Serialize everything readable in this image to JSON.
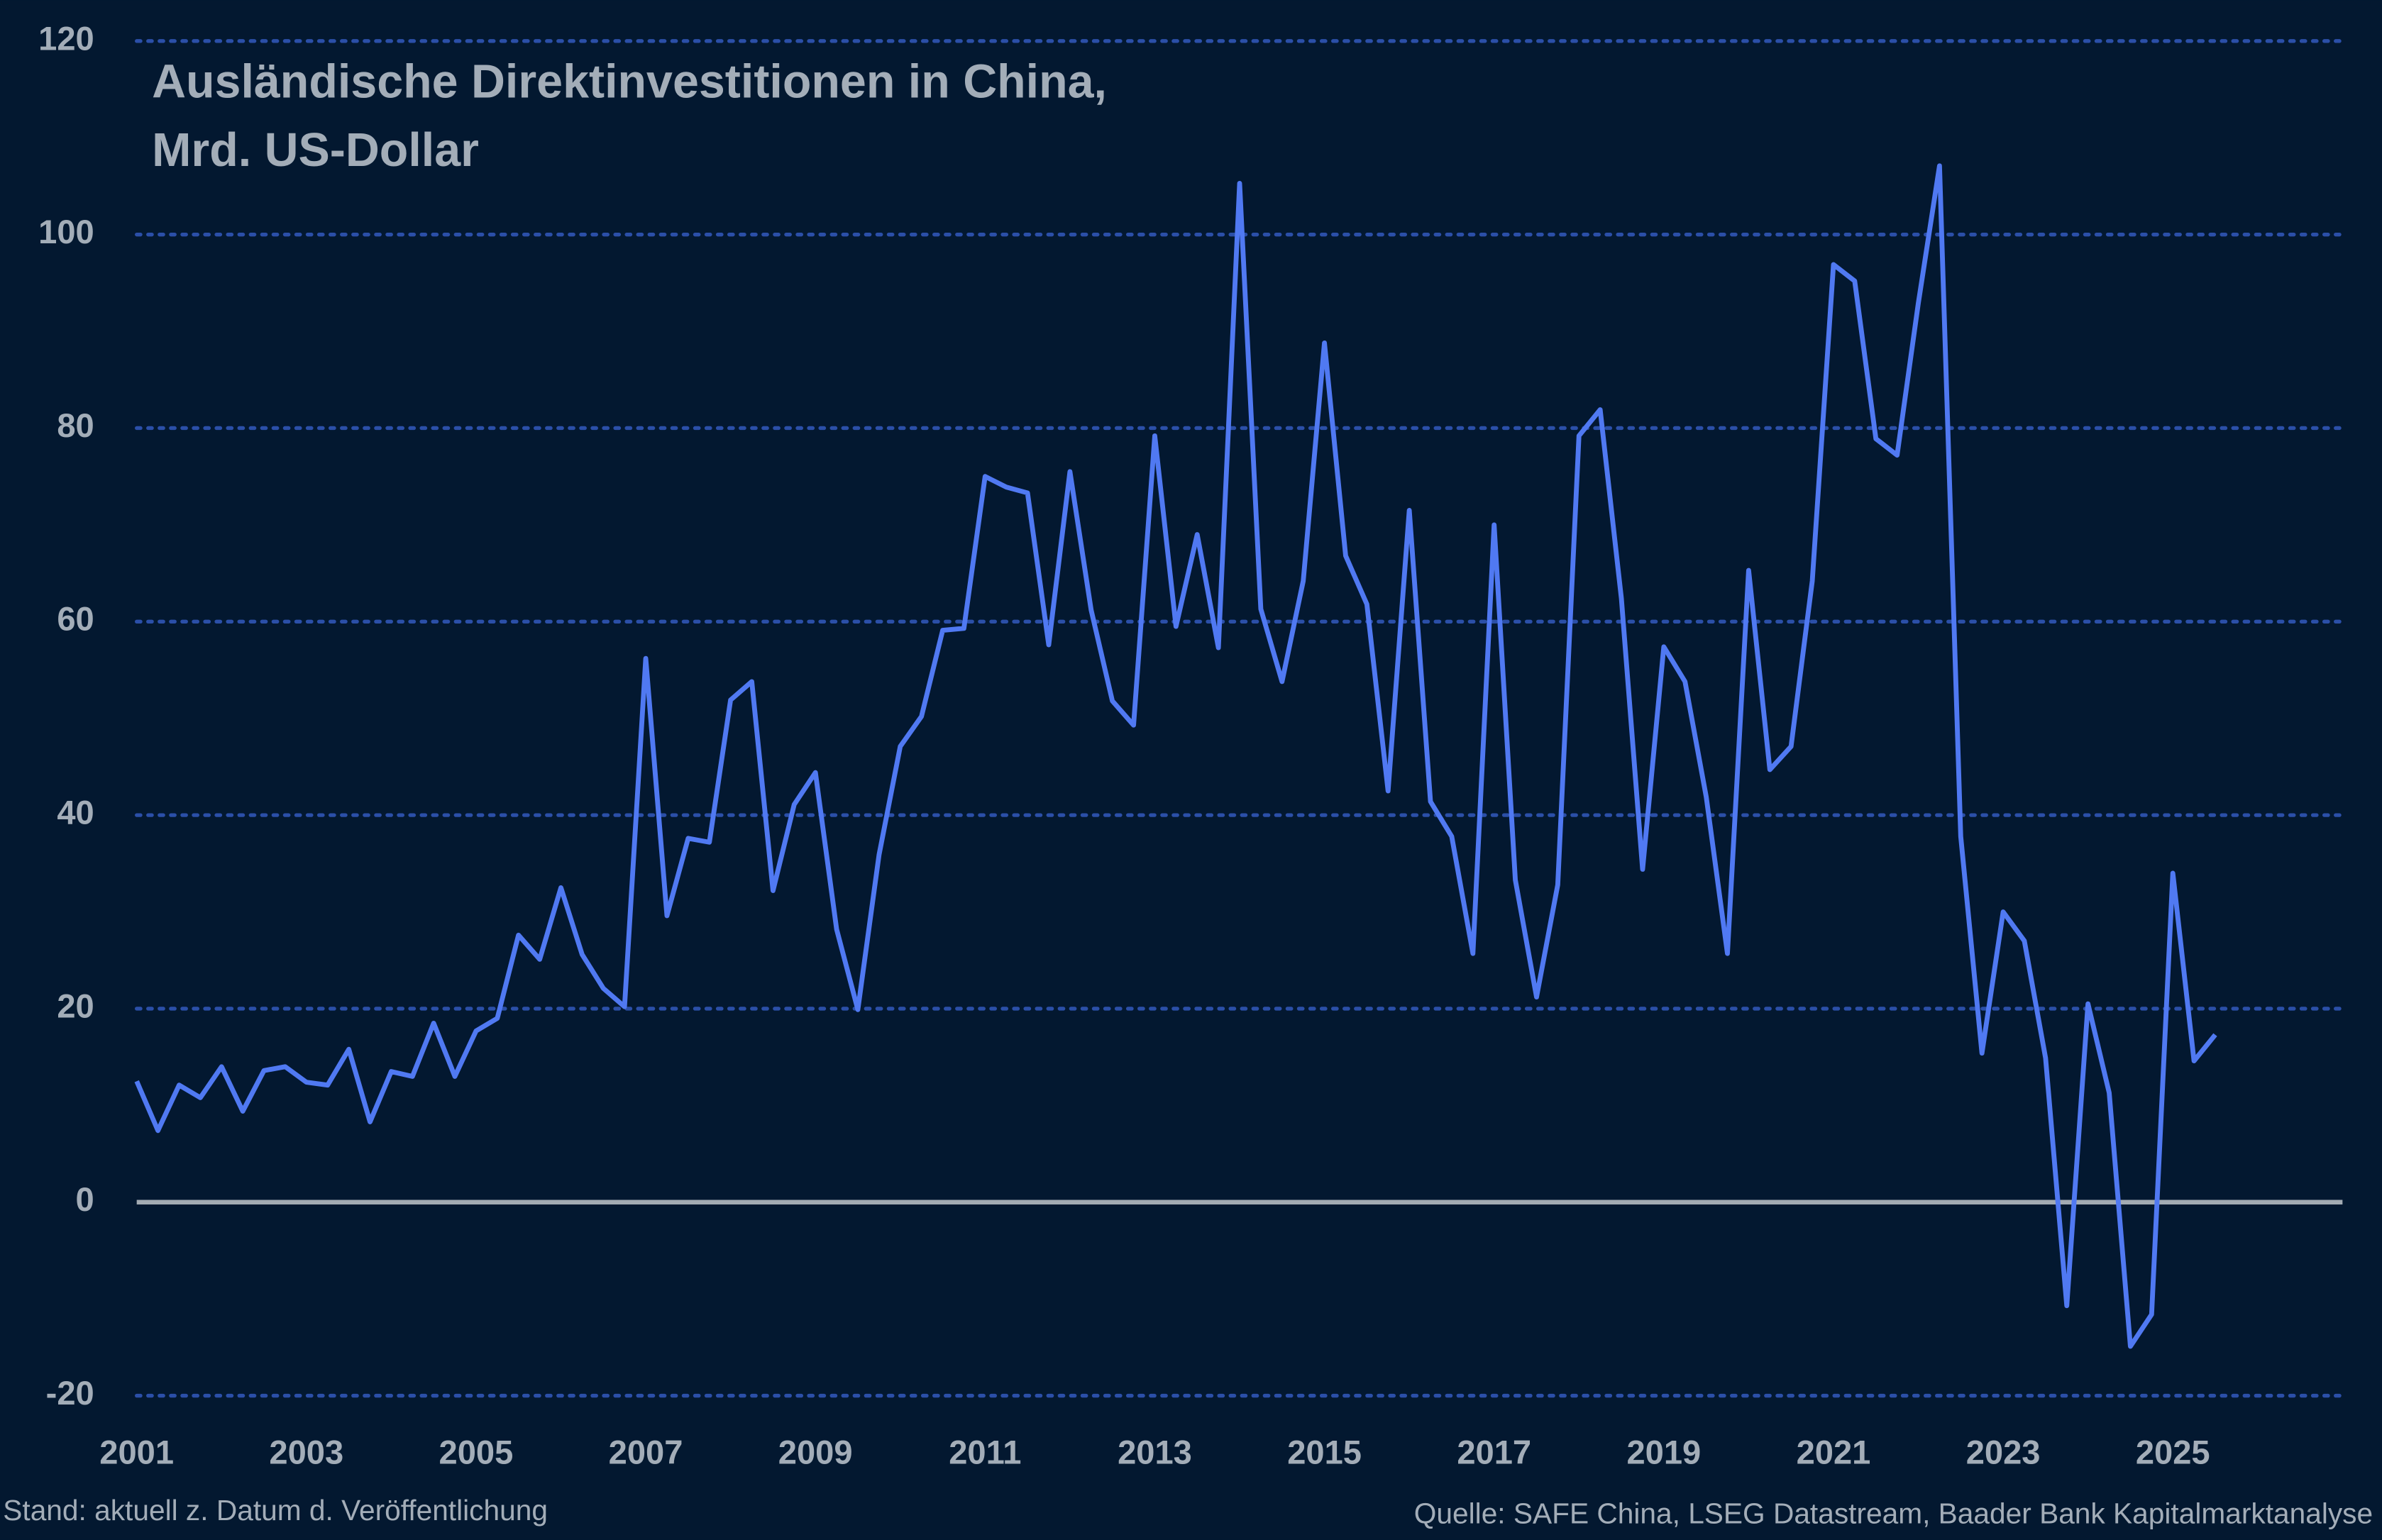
{
  "chart_data": {
    "type": "line",
    "title": [
      "Ausländische Direktinvestitionen in China,",
      "Mrd. US-Dollar"
    ],
    "footnote": "Stand: aktuell z. Datum d. Veröffentlichung",
    "source": "Quelle: SAFE China, LSEG Datastream, Baader Bank Kapitalmarktanalyse",
    "x": [
      2001,
      2001.25,
      2001.5,
      2001.75,
      2002,
      2002.25,
      2002.5,
      2002.75,
      2003,
      2003.25,
      2003.5,
      2003.75,
      2004,
      2004.25,
      2004.5,
      2004.75,
      2005,
      2005.25,
      2005.5,
      2005.75,
      2006,
      2006.25,
      2006.5,
      2006.75,
      2007,
      2007.25,
      2007.5,
      2007.75,
      2008,
      2008.25,
      2008.5,
      2008.75,
      2009,
      2009.25,
      2009.5,
      2009.75,
      2010,
      2010.25,
      2010.5,
      2010.75,
      2011,
      2011.25,
      2011.5,
      2011.75,
      2012,
      2012.25,
      2012.5,
      2012.75,
      2013,
      2013.25,
      2013.5,
      2013.75,
      2014,
      2014.25,
      2014.5,
      2014.75,
      2015,
      2015.25,
      2015.5,
      2015.75,
      2016,
      2016.25,
      2016.5,
      2016.75,
      2017,
      2017.25,
      2017.5,
      2017.75,
      2018,
      2018.25,
      2018.5,
      2018.75,
      2019,
      2019.25,
      2019.5,
      2019.75,
      2020,
      2020.25,
      2020.5,
      2020.75,
      2021,
      2021.25,
      2021.5,
      2021.75,
      2022,
      2022.25,
      2022.5,
      2022.75,
      2023,
      2023.25,
      2023.5,
      2023.75,
      2024,
      2024.25,
      2024.5,
      2024.75,
      2025,
      2025.25,
      2025.5
    ],
    "series": [
      {
        "name": "Direktinvestitionen",
        "color": "#5079f2",
        "values": [
          12.5,
          7.4,
          12.1,
          10.8,
          14,
          9.4,
          13.6,
          14,
          12.4,
          12.1,
          15.8,
          8.3,
          13.5,
          13,
          18.5,
          13,
          17.7,
          19,
          27.6,
          25.1,
          32.5,
          25.6,
          22.1,
          20.2,
          56.2,
          29.6,
          37.6,
          37.2,
          51.9,
          53.8,
          32.2,
          41.1,
          44.4,
          28.2,
          19.9,
          35.9,
          47.1,
          50.2,
          59.1,
          59.3,
          75,
          73.9,
          73.3,
          57.6,
          75.5,
          61.2,
          51.8,
          49.3,
          79.2,
          59.5,
          69,
          57.3,
          105.3,
          61.3,
          53.8,
          64.2,
          88.8,
          66.8,
          61.8,
          42.5,
          71.5,
          41.4,
          37.8,
          25.7,
          70,
          33.3,
          21.2,
          32.8,
          79.2,
          81.9,
          62.4,
          34.4,
          57.4,
          53.8,
          41.9,
          25.7,
          65.3,
          44.7,
          47.1,
          64.2,
          96.9,
          95.2,
          78.9,
          77.2,
          92.9,
          107.1,
          37.8,
          15.4,
          30,
          27,
          14.9,
          -10.7,
          20.5,
          11.3,
          -14.9,
          -11.6,
          34,
          14.6,
          17.3
        ]
      }
    ],
    "xlim": [
      2001,
      2027
    ],
    "xticks": [
      2001,
      2003,
      2005,
      2007,
      2009,
      2011,
      2013,
      2015,
      2017,
      2019,
      2021,
      2023,
      2025
    ],
    "ylim": [
      -20,
      120
    ],
    "yticks": [
      -20,
      0,
      20,
      40,
      60,
      80,
      100,
      120
    ],
    "grid": true
  }
}
